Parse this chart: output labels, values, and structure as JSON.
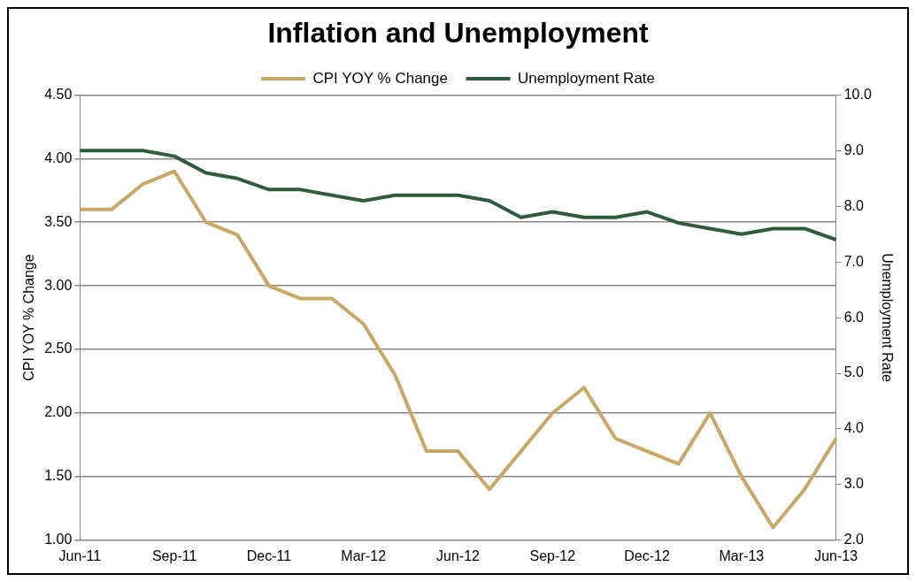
{
  "chart_data": {
    "type": "line",
    "title": "Inflation and Unemployment",
    "ylabel": "CPI YOY % Change",
    "y2label": "Unemployment Rate",
    "categories": [
      "Jun-11",
      null,
      null,
      "Sep-11",
      null,
      null,
      "Dec-11",
      null,
      null,
      "Mar-12",
      null,
      null,
      "Jun-12",
      null,
      null,
      "Sep-12",
      null,
      null,
      "Dec-12",
      null,
      null,
      "Mar-13",
      null,
      null,
      "Jun-13"
    ],
    "series": [
      {
        "name": "CPI YOY % Change",
        "color": "#c9a767",
        "values": [
          3.6,
          3.6,
          3.8,
          3.9,
          3.5,
          3.4,
          3.0,
          2.9,
          2.9,
          2.7,
          2.3,
          1.7,
          1.7,
          1.4,
          1.7,
          2.0,
          2.2,
          1.8,
          1.7,
          1.6,
          2.0,
          1.5,
          1.1,
          1.4,
          1.8
        ]
      },
      {
        "name": "Unemployment Rate",
        "color": "#2f5c3e",
        "axis": "y2",
        "values": [
          9.0,
          9.0,
          9.0,
          8.9,
          8.6,
          8.5,
          8.3,
          8.3,
          8.2,
          8.1,
          8.2,
          8.2,
          8.2,
          8.1,
          7.8,
          7.9,
          7.8,
          7.8,
          7.9,
          7.7,
          7.6,
          7.5,
          7.6,
          7.6,
          7.4
        ]
      }
    ],
    "ylim": [
      1,
      4.5
    ],
    "yticks": [
      {
        "value": 1,
        "label": "1.00"
      },
      {
        "value": 1.5,
        "label": "1.50"
      },
      {
        "value": 2,
        "label": "2.00"
      },
      {
        "value": 2.5,
        "label": "2.50"
      },
      {
        "value": 3,
        "label": "3.00"
      },
      {
        "value": 3.5,
        "label": "3.50"
      },
      {
        "value": 4,
        "label": "4.00"
      },
      {
        "value": 4.5,
        "label": "4.50"
      }
    ],
    "y2lim": [
      2,
      10
    ],
    "y2ticks": [
      {
        "value": 2,
        "label": "2.0"
      },
      {
        "value": 3,
        "label": "3.0"
      },
      {
        "value": 4,
        "label": "4.0"
      },
      {
        "value": 5,
        "label": "5.0"
      },
      {
        "value": 6,
        "label": "6.0"
      },
      {
        "value": 7,
        "label": "7.0"
      },
      {
        "value": 8,
        "label": "8.0"
      },
      {
        "value": 9,
        "label": "9.0"
      },
      {
        "value": 10,
        "label": "10.0"
      }
    ],
    "grid": "y",
    "legend": "top",
    "marker": "none",
    "line_style": "solid"
  }
}
